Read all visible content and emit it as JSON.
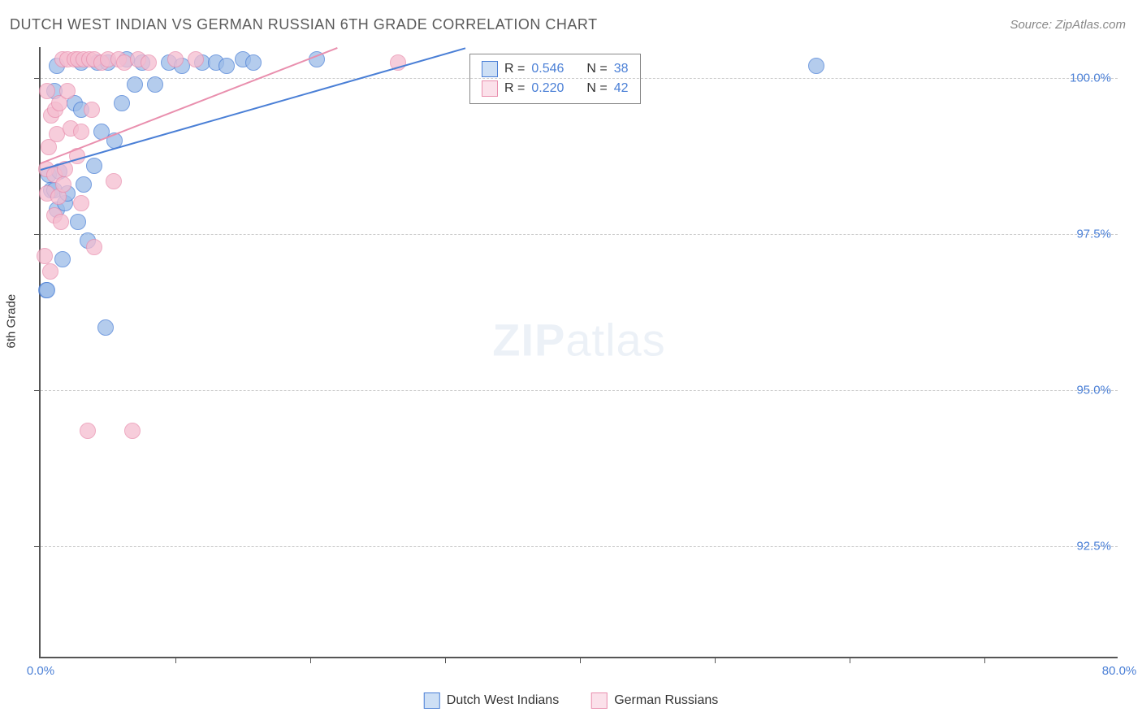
{
  "title": "DUTCH WEST INDIAN VS GERMAN RUSSIAN 6TH GRADE CORRELATION CHART",
  "source": "Source: ZipAtlas.com",
  "y_axis_label": "6th Grade",
  "watermark": {
    "bold": "ZIP",
    "light": "atlas"
  },
  "chart": {
    "type": "scatter",
    "background_color": "#ffffff",
    "axis_color": "#555555",
    "grid_color": "#cccccc",
    "tick_label_color": "#4a7fd6",
    "xlim": [
      0.0,
      80.0
    ],
    "ylim": [
      90.7,
      100.5
    ],
    "x_ticks": [
      0.0,
      80.0
    ],
    "x_tick_labels": [
      "0.0%",
      "80.0%"
    ],
    "x_minor_ticks": [
      10,
      20,
      30,
      40,
      50,
      60,
      70
    ],
    "y_ticks": [
      92.5,
      95.0,
      97.5,
      100.0
    ],
    "y_tick_labels": [
      "92.5%",
      "95.0%",
      "97.5%",
      "100.0%"
    ],
    "marker_radius": 10,
    "marker_stroke_width": 1.5,
    "marker_fill_opacity": 0.25,
    "series": [
      {
        "name": "Dutch West Indians",
        "stroke": "#4a7fd6",
        "fill": "#9cbce8",
        "swatch_fill": "#cddff5",
        "R": "0.546",
        "N": "38",
        "trend": {
          "x1": 0.0,
          "y1": 98.55,
          "x2": 31.5,
          "y2": 100.5
        },
        "points": [
          [
            0.4,
            96.6
          ],
          [
            0.5,
            96.6
          ],
          [
            0.6,
            98.45
          ],
          [
            0.8,
            98.2
          ],
          [
            1.0,
            99.8
          ],
          [
            1.0,
            98.2
          ],
          [
            1.2,
            97.9
          ],
          [
            1.2,
            100.2
          ],
          [
            1.4,
            98.5
          ],
          [
            1.6,
            97.1
          ],
          [
            1.8,
            98.0
          ],
          [
            2.0,
            98.15
          ],
          [
            2.5,
            99.6
          ],
          [
            2.8,
            97.7
          ],
          [
            3.0,
            99.5
          ],
          [
            3.0,
            100.25
          ],
          [
            3.2,
            98.3
          ],
          [
            3.5,
            97.4
          ],
          [
            4.0,
            98.6
          ],
          [
            4.2,
            100.25
          ],
          [
            4.5,
            99.15
          ],
          [
            4.8,
            96.0
          ],
          [
            5.0,
            100.25
          ],
          [
            5.5,
            99.0
          ],
          [
            6.0,
            99.6
          ],
          [
            6.4,
            100.3
          ],
          [
            7.0,
            99.9
          ],
          [
            7.5,
            100.25
          ],
          [
            8.5,
            99.9
          ],
          [
            9.5,
            100.25
          ],
          [
            10.5,
            100.2
          ],
          [
            12.0,
            100.25
          ],
          [
            13.0,
            100.25
          ],
          [
            13.8,
            100.2
          ],
          [
            15.0,
            100.3
          ],
          [
            15.8,
            100.25
          ],
          [
            20.5,
            100.3
          ],
          [
            57.5,
            100.2
          ]
        ]
      },
      {
        "name": "German Russians",
        "stroke": "#e98fae",
        "fill": "#f5bdd0",
        "swatch_fill": "#fbe1ea",
        "R": "0.220",
        "N": "42",
        "trend": {
          "x1": 0.0,
          "y1": 98.65,
          "x2": 22.0,
          "y2": 100.5
        },
        "points": [
          [
            0.3,
            97.15
          ],
          [
            0.4,
            98.55
          ],
          [
            0.5,
            98.15
          ],
          [
            0.5,
            99.8
          ],
          [
            0.6,
            98.9
          ],
          [
            0.7,
            96.9
          ],
          [
            0.8,
            99.4
          ],
          [
            1.0,
            98.45
          ],
          [
            1.0,
            97.8
          ],
          [
            1.1,
            99.5
          ],
          [
            1.2,
            99.1
          ],
          [
            1.3,
            98.1
          ],
          [
            1.4,
            99.6
          ],
          [
            1.5,
            97.7
          ],
          [
            1.6,
            100.3
          ],
          [
            1.7,
            98.3
          ],
          [
            1.8,
            98.55
          ],
          [
            2.0,
            99.8
          ],
          [
            2.0,
            100.3
          ],
          [
            2.2,
            99.2
          ],
          [
            2.5,
            100.3
          ],
          [
            2.7,
            98.75
          ],
          [
            2.8,
            100.3
          ],
          [
            3.0,
            98.0
          ],
          [
            3.0,
            99.15
          ],
          [
            3.2,
            100.3
          ],
          [
            3.5,
            94.35
          ],
          [
            3.6,
            100.3
          ],
          [
            3.8,
            99.5
          ],
          [
            4.0,
            100.3
          ],
          [
            4.0,
            97.3
          ],
          [
            4.5,
            100.25
          ],
          [
            5.0,
            100.3
          ],
          [
            5.4,
            98.35
          ],
          [
            5.8,
            100.3
          ],
          [
            6.2,
            100.25
          ],
          [
            6.8,
            94.35
          ],
          [
            7.2,
            100.3
          ],
          [
            8.0,
            100.25
          ],
          [
            10.0,
            100.3
          ],
          [
            11.5,
            100.3
          ],
          [
            26.5,
            100.25
          ]
        ]
      }
    ]
  },
  "stats_legend": {
    "border_color": "#888888",
    "rows": [
      {
        "series_idx": 0,
        "text_R": "R =",
        "val_R": "0.546",
        "text_N": "N =",
        "val_N": "38"
      },
      {
        "series_idx": 1,
        "text_R": "R =",
        "val_R": "0.220",
        "text_N": "N =",
        "val_N": "42"
      }
    ]
  },
  "bottom_legend": {
    "items": [
      {
        "series_idx": 0,
        "label": "Dutch West Indians"
      },
      {
        "series_idx": 1,
        "label": "German Russians"
      }
    ]
  }
}
